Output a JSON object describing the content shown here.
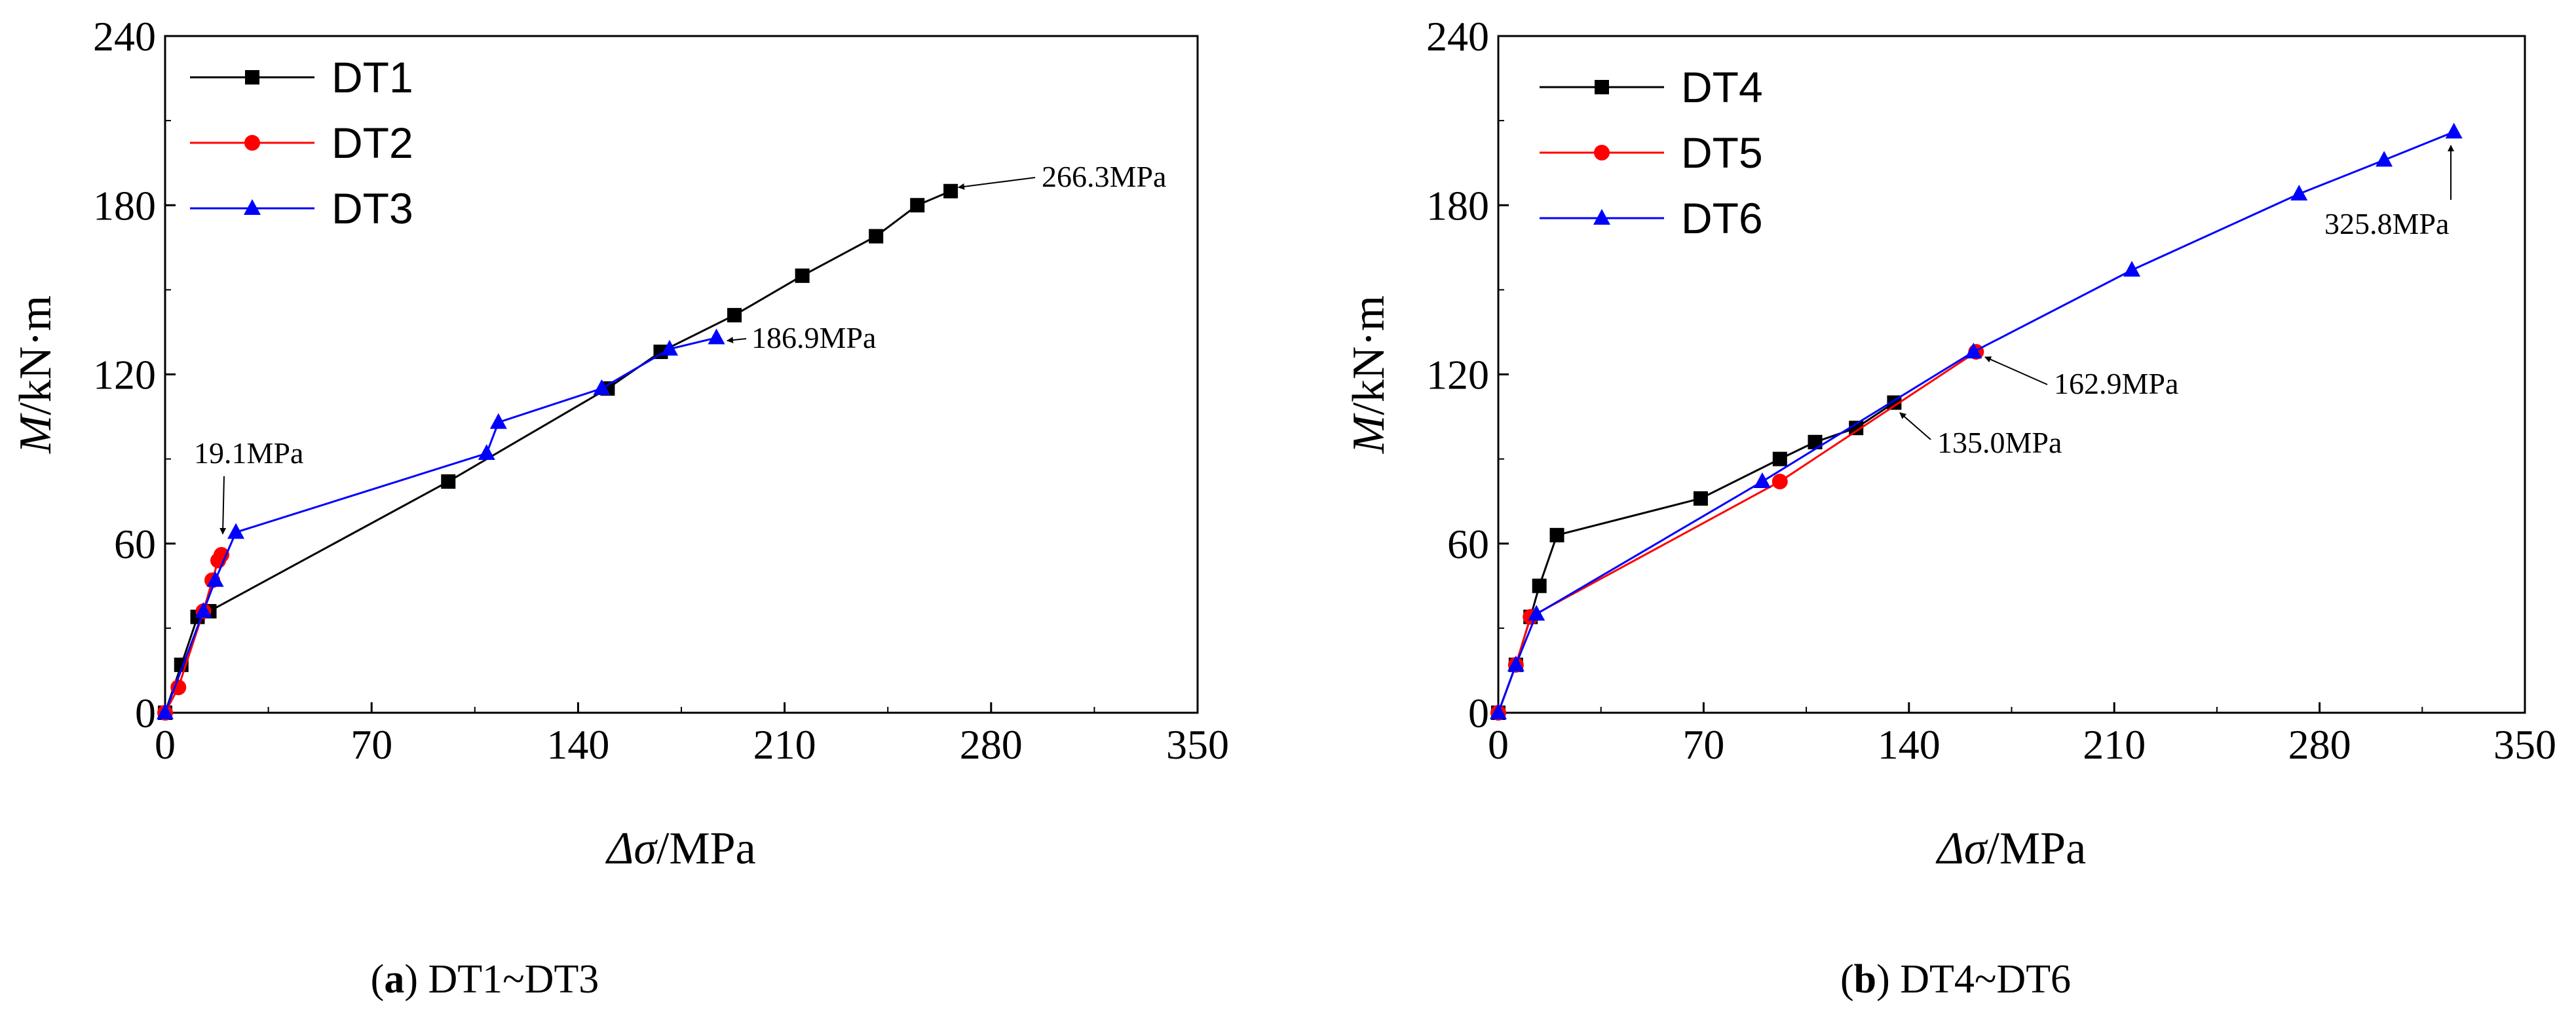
{
  "figure": {
    "captions": [
      {
        "letter": "(a)",
        "rest": " DT1~DT3"
      },
      {
        "letter": "(b)",
        "rest": " DT4~DT6"
      }
    ],
    "series_colors": {
      "DT1": "#000000",
      "DT2": "#ff0000",
      "DT3": "#0000ff",
      "DT4": "#000000",
      "DT5": "#ff0000",
      "DT6": "#0000ff"
    },
    "series_markers": {
      "DT1": "square",
      "DT2": "circle",
      "DT3": "triangle",
      "DT4": "square",
      "DT5": "circle",
      "DT6": "triangle"
    }
  },
  "chart_data": [
    {
      "type": "line",
      "panel": "a",
      "xlabel_symbol": "Δσ",
      "xlabel_unit": "/MPa",
      "ylabel_symbol": "M",
      "ylabel_unit": "/kN·m",
      "xlim": [
        0,
        350
      ],
      "ylim": [
        0,
        240
      ],
      "xticks": [
        0,
        70,
        140,
        210,
        280,
        350
      ],
      "yticks": [
        0,
        60,
        120,
        180,
        240
      ],
      "legend_position": "top-left",
      "series": [
        {
          "name": "DT1",
          "points": [
            [
              0,
              0
            ],
            [
              5.5,
              17
            ],
            [
              11,
              34
            ],
            [
              15,
              36
            ],
            [
              96,
              82
            ],
            [
              150,
              115
            ],
            [
              168,
              128
            ],
            [
              193,
              141
            ],
            [
              216,
              155
            ],
            [
              241,
              169
            ],
            [
              255,
              180
            ],
            [
              266.3,
              185
            ]
          ]
        },
        {
          "name": "DT2",
          "points": [
            [
              0,
              0
            ],
            [
              4.5,
              9
            ],
            [
              13,
              36
            ],
            [
              16,
              47
            ],
            [
              18,
              54
            ],
            [
              19.1,
              56
            ]
          ]
        },
        {
          "name": "DT3",
          "points": [
            [
              0,
              0
            ],
            [
              13,
              36
            ],
            [
              17,
              47
            ],
            [
              24,
              64
            ],
            [
              109,
              92
            ],
            [
              113,
              103
            ],
            [
              148,
              115
            ],
            [
              171,
              129
            ],
            [
              186.9,
              133
            ]
          ]
        }
      ],
      "annotations": [
        {
          "text": "266.3MPa",
          "target": [
            266.3,
            185
          ]
        },
        {
          "text": "186.9MPa",
          "target": [
            186.9,
            133
          ]
        },
        {
          "text": "19.1MPa",
          "target": [
            19.1,
            56
          ]
        }
      ]
    },
    {
      "type": "line",
      "panel": "b",
      "xlabel_symbol": "Δσ",
      "xlabel_unit": "/MPa",
      "ylabel_symbol": "M",
      "ylabel_unit": "/kN·m",
      "xlim": [
        0,
        350
      ],
      "ylim": [
        0,
        240
      ],
      "xticks": [
        0,
        70,
        140,
        210,
        280,
        350
      ],
      "yticks": [
        0,
        60,
        120,
        180,
        240
      ],
      "legend_position": "top-left",
      "series": [
        {
          "name": "DT4",
          "points": [
            [
              0,
              0
            ],
            [
              6,
              17
            ],
            [
              11,
              34
            ],
            [
              14,
              45
            ],
            [
              20,
              63
            ],
            [
              69,
              76
            ],
            [
              96,
              90
            ],
            [
              108,
              96
            ],
            [
              122,
              101
            ],
            [
              135,
              110
            ]
          ]
        },
        {
          "name": "DT5",
          "points": [
            [
              0,
              0
            ],
            [
              6,
              17
            ],
            [
              11,
              34
            ],
            [
              96,
              82
            ],
            [
              162.9,
              128
            ]
          ]
        },
        {
          "name": "DT6",
          "points": [
            [
              0,
              0
            ],
            [
              6,
              17
            ],
            [
              13,
              35
            ],
            [
              90,
              82
            ],
            [
              162,
              128
            ],
            [
              216,
              157
            ],
            [
              273,
              184
            ],
            [
              302,
              196
            ],
            [
              325.8,
              206
            ]
          ]
        }
      ],
      "annotations": [
        {
          "text": "325.8MPa",
          "target": [
            325.8,
            206
          ]
        },
        {
          "text": "162.9MPa",
          "target": [
            162.9,
            128
          ]
        },
        {
          "text": "135.0MPa",
          "target": [
            135,
            110
          ]
        }
      ]
    }
  ]
}
